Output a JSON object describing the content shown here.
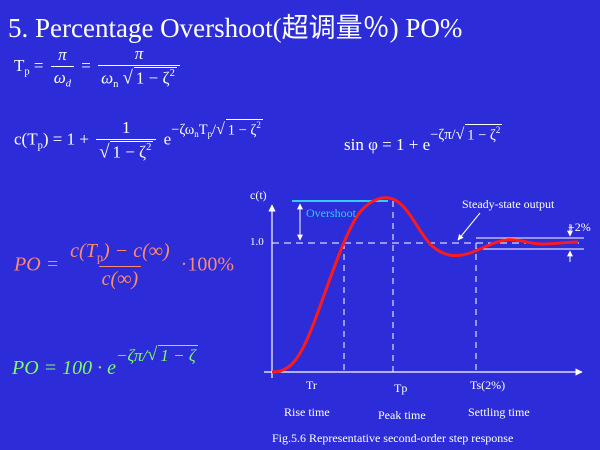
{
  "title": "5. Percentage Overshoot(超调量％) PO%",
  "equations": {
    "tp": {
      "lhs": "T",
      "lhs_sub": "p",
      "eq": "=",
      "num1": "π",
      "den1_sym": "ω",
      "den1_sub": "d",
      "num2": "π",
      "den2_sym": "ω",
      "den2_sub": "n",
      "rad": "1 − ζ",
      "sq": "2"
    },
    "ctp": {
      "lhs": "c(T",
      "lhs_sub": "p",
      "lhs_end": ") = 1 +",
      "num": "1",
      "rad": "1 − ζ",
      "sq": "2",
      "e": "e",
      "exp_a": "−ζω",
      "exp_sub_n": "n",
      "exp_b": "T",
      "exp_sub_p": "p",
      "exp_rad": "1 − ζ",
      "exp_sq": "2"
    },
    "sin": {
      "text": "sin φ = 1 + e",
      "exp_a": "−ζπ",
      "exp_rad": "1 − ζ",
      "exp_sq": "2"
    },
    "po_def": {
      "lhs": "PO =",
      "num_a": "c",
      "num_tp": "(T",
      "num_tp_sub": "p",
      "num_b": ") − c(∞)",
      "den": "c(∞)",
      "tail": "·100%"
    },
    "po_formula": {
      "lhs": "PO = 100 · e",
      "exp_a": "−ζπ",
      "exp_rad": "1 − ζ"
    }
  },
  "figure": {
    "y_axis_label": "c(t)",
    "level_label": "1.0",
    "overshoot_label": "Overshoot",
    "steady_state_label": "Steady-state output",
    "band_label": "+2%",
    "tr_label": "Tr",
    "tp_label": "Tp",
    "ts_label": "Ts(2%)",
    "rise_time_label": "Rise time",
    "peak_time_label": "Peak time",
    "settling_time_label": "Settling time",
    "caption": "Fig.5.6 Representative second-order step response",
    "colors": {
      "response": "#ff1a1a",
      "overshoot_marker": "#33ccff",
      "axes": "#ffffff"
    }
  }
}
